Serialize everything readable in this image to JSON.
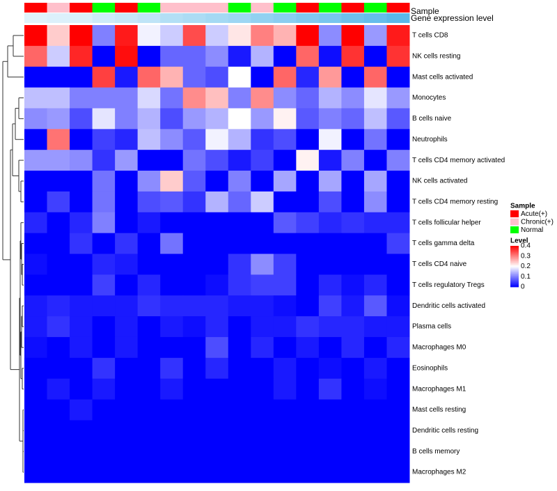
{
  "chart_data": {
    "type": "heatmap",
    "annotation_titles": {
      "sample": "Sample",
      "gene_expression": "Gene expression level"
    },
    "sample_groups": [
      "Acute(+)",
      "Chronic(+)",
      "Acute(+)",
      "Normal",
      "Acute(+)",
      "Normal",
      "Chronic(+)",
      "Chronic(+)",
      "Chronic(+)",
      "Normal",
      "Chronic(+)",
      "Normal",
      "Acute(+)",
      "Normal",
      "Acute(+)",
      "Normal",
      "Acute(+)"
    ],
    "gene_expression_level": [
      0.1,
      0.12,
      0.14,
      0.2,
      0.24,
      0.28,
      0.34,
      0.38,
      0.42,
      0.46,
      0.52,
      0.56,
      0.62,
      0.66,
      0.72,
      0.76,
      0.82
    ],
    "rows": [
      "T cells CD8",
      "NK cells resting",
      "Mast cells activated",
      "Monocytes",
      "B cells naive",
      "Neutrophils",
      "T cells CD4 memory activated",
      "NK cells activated",
      "T cells CD4 memory resting",
      "T cells follicular helper",
      "T cells gamma delta",
      "T cells CD4 naive",
      "T cells regulatory  Tregs",
      "Dendritic cells activated",
      "Plasma cells",
      "Macrophages M0",
      "Eosinophils",
      "Macrophages M1",
      "Mast cells resting",
      "Dendritic cells resting",
      "B cells memory",
      "Macrophages M2"
    ],
    "values": [
      [
        0.4,
        0.24,
        0.4,
        0.1,
        0.38,
        0.19,
        0.16,
        0.34,
        0.16,
        0.22,
        0.3,
        0.26,
        0.4,
        0.11,
        0.4,
        0.12,
        0.38
      ],
      [
        0.32,
        0.16,
        0.37,
        0.0,
        0.39,
        0.0,
        0.08,
        0.08,
        0.11,
        0.02,
        0.14,
        0.0,
        0.32,
        0.01,
        0.36,
        0.0,
        0.36
      ],
      [
        0.0,
        0.0,
        0.0,
        0.35,
        0.02,
        0.32,
        0.26,
        0.08,
        0.06,
        0.2,
        0.0,
        0.32,
        0.03,
        0.28,
        0.0,
        0.32,
        0.0
      ],
      [
        0.15,
        0.15,
        0.1,
        0.1,
        0.1,
        0.17,
        0.09,
        0.29,
        0.25,
        0.1,
        0.29,
        0.11,
        0.08,
        0.14,
        0.11,
        0.18,
        0.12
      ],
      [
        0.11,
        0.12,
        0.06,
        0.18,
        0.1,
        0.14,
        0.06,
        0.12,
        0.14,
        0.2,
        0.12,
        0.21,
        0.07,
        0.1,
        0.08,
        0.15,
        0.07
      ],
      [
        0.0,
        0.31,
        0.0,
        0.05,
        0.03,
        0.15,
        0.11,
        0.07,
        0.19,
        0.14,
        0.04,
        0.06,
        0.0,
        0.19,
        0.0,
        0.09,
        0.0
      ],
      [
        0.12,
        0.12,
        0.11,
        0.04,
        0.12,
        0.0,
        0.0,
        0.09,
        0.06,
        0.02,
        0.05,
        0.0,
        0.21,
        0.02,
        0.1,
        0.0,
        0.1
      ],
      [
        0.0,
        0.0,
        0.0,
        0.09,
        0.0,
        0.11,
        0.24,
        0.07,
        0.0,
        0.1,
        0.0,
        0.13,
        0.0,
        0.13,
        0.0,
        0.13,
        0.0
      ],
      [
        0.0,
        0.05,
        0.0,
        0.09,
        0.0,
        0.06,
        0.07,
        0.04,
        0.14,
        0.08,
        0.16,
        0.0,
        0.0,
        0.06,
        0.0,
        0.11,
        0.0
      ],
      [
        0.03,
        0.0,
        0.03,
        0.1,
        0.0,
        0.02,
        0.0,
        0.0,
        0.0,
        0.0,
        0.0,
        0.07,
        0.05,
        0.03,
        0.04,
        0.03,
        0.03
      ],
      [
        0.0,
        0.0,
        0.04,
        0.0,
        0.04,
        0.0,
        0.09,
        0.0,
        0.0,
        0.0,
        0.0,
        0.0,
        0.0,
        0.0,
        0.0,
        0.0,
        0.05
      ],
      [
        0.01,
        0.0,
        0.0,
        0.03,
        0.02,
        0.0,
        0.0,
        0.0,
        0.0,
        0.04,
        0.11,
        0.05,
        0.0,
        0.0,
        0.0,
        0.0,
        0.0
      ],
      [
        0.0,
        0.0,
        0.0,
        0.05,
        0.0,
        0.03,
        0.0,
        0.0,
        0.01,
        0.04,
        0.05,
        0.05,
        0.0,
        0.03,
        0.01,
        0.03,
        0.0
      ],
      [
        0.02,
        0.03,
        0.02,
        0.02,
        0.02,
        0.04,
        0.03,
        0.03,
        0.03,
        0.02,
        0.02,
        0.01,
        0.0,
        0.05,
        0.02,
        0.07,
        0.01
      ],
      [
        0.02,
        0.04,
        0.02,
        0.0,
        0.02,
        0.0,
        0.02,
        0.01,
        0.03,
        0.0,
        0.02,
        0.02,
        0.04,
        0.03,
        0.03,
        0.02,
        0.02
      ],
      [
        0.01,
        0.0,
        0.02,
        0.0,
        0.02,
        0.0,
        0.0,
        0.0,
        0.06,
        0.0,
        0.03,
        0.0,
        0.02,
        0.0,
        0.03,
        0.0,
        0.03
      ],
      [
        0.0,
        0.0,
        0.0,
        0.04,
        0.0,
        0.0,
        0.04,
        0.0,
        0.03,
        0.0,
        0.0,
        0.02,
        0.0,
        0.01,
        0.0,
        0.02,
        0.0
      ],
      [
        0.0,
        0.02,
        0.0,
        0.02,
        0.0,
        0.0,
        0.02,
        0.0,
        0.0,
        0.0,
        0.0,
        0.02,
        0.0,
        0.04,
        0.0,
        0.01,
        0.0
      ],
      [
        0.0,
        0.0,
        0.02,
        0.0,
        0.0,
        0.0,
        0.0,
        0.0,
        0.0,
        0.0,
        0.0,
        0.0,
        0.0,
        0.0,
        0.0,
        0.0,
        0.0
      ],
      [
        0.0,
        0.0,
        0.0,
        0.0,
        0.0,
        0.0,
        0.0,
        0.0,
        0.0,
        0.0,
        0.0,
        0.0,
        0.0,
        0.0,
        0.0,
        0.0,
        0.0
      ],
      [
        0.0,
        0.0,
        0.0,
        0.0,
        0.0,
        0.0,
        0.0,
        0.0,
        0.0,
        0.0,
        0.0,
        0.0,
        0.0,
        0.0,
        0.0,
        0.0,
        0.0
      ],
      [
        0.0,
        0.0,
        0.0,
        0.0,
        0.0,
        0.0,
        0.0,
        0.0,
        0.0,
        0.0,
        0.0,
        0.0,
        0.0,
        0.0,
        0.0,
        0.0,
        0.0
      ]
    ],
    "color_scale": {
      "min": 0,
      "mid": 0.2,
      "max": 0.4,
      "low_color": "#0000ff",
      "mid_color": "#ffffff",
      "high_color": "#ff0000"
    },
    "legend": {
      "sample_title": "Sample",
      "sample_entries": [
        {
          "label": "Acute(+)",
          "color": "#ff0000"
        },
        {
          "label": "Chronic(+)",
          "color": "#ffc0cb"
        },
        {
          "label": "Normal",
          "color": "#00ff00"
        }
      ],
      "level_title": "Level",
      "level_ticks": [
        "0.4",
        "0.3",
        "0.2",
        "0.1",
        "0"
      ],
      "level_tick_values": [
        0.4,
        0.3,
        0.2,
        0.1,
        0
      ]
    },
    "annotation_colors": {
      "gene_expression_low": "#e0f3fb",
      "gene_expression_high": "#5ab8ea"
    },
    "dendrogram": "row clustering tree on left",
    "legend_position": "right"
  }
}
